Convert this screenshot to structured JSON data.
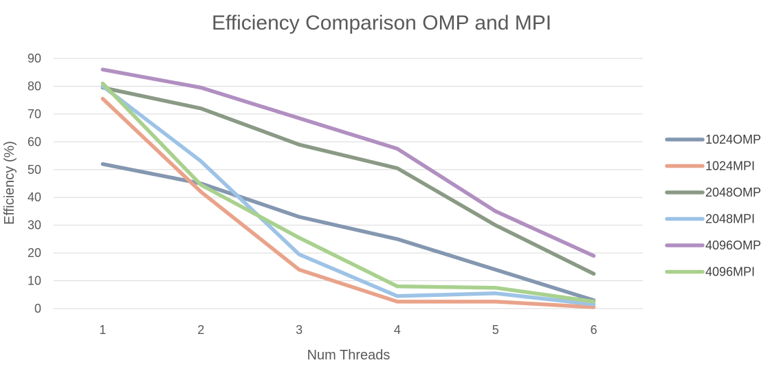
{
  "chart_data": {
    "type": "line",
    "title": "Efficiency Comparison OMP and MPI",
    "xlabel": "Num Threads",
    "ylabel": "Efficiency (%)",
    "categories": [
      "1",
      "2",
      "3",
      "4",
      "5",
      "6"
    ],
    "ylim": [
      0,
      90
    ],
    "yticks": [
      "0",
      "10",
      "20",
      "30",
      "40",
      "50",
      "60",
      "70",
      "80",
      "90"
    ],
    "grid": true,
    "legend_position": "right",
    "series": [
      {
        "name": "1024OMP",
        "color": "#8497B0",
        "values": [
          52,
          45,
          33,
          25,
          14,
          3
        ]
      },
      {
        "name": "1024MPI",
        "color": "#E9A38A",
        "values": [
          75.5,
          42,
          14,
          2.5,
          2.5,
          0.5
        ]
      },
      {
        "name": "2048OMP",
        "color": "#8A9A85",
        "values": [
          79.5,
          72,
          59,
          50.5,
          30,
          12.5
        ]
      },
      {
        "name": "2048MPI",
        "color": "#9DC3E6",
        "values": [
          80,
          53,
          19.5,
          4.5,
          5.5,
          1.5
        ]
      },
      {
        "name": "4096OMP",
        "color": "#B18FC1",
        "values": [
          86,
          79.5,
          68.5,
          57.5,
          35,
          19
        ]
      },
      {
        "name": "4096MPI",
        "color": "#A9D18E",
        "values": [
          81,
          44.5,
          25.5,
          8,
          7.5,
          2.5
        ]
      }
    ]
  }
}
